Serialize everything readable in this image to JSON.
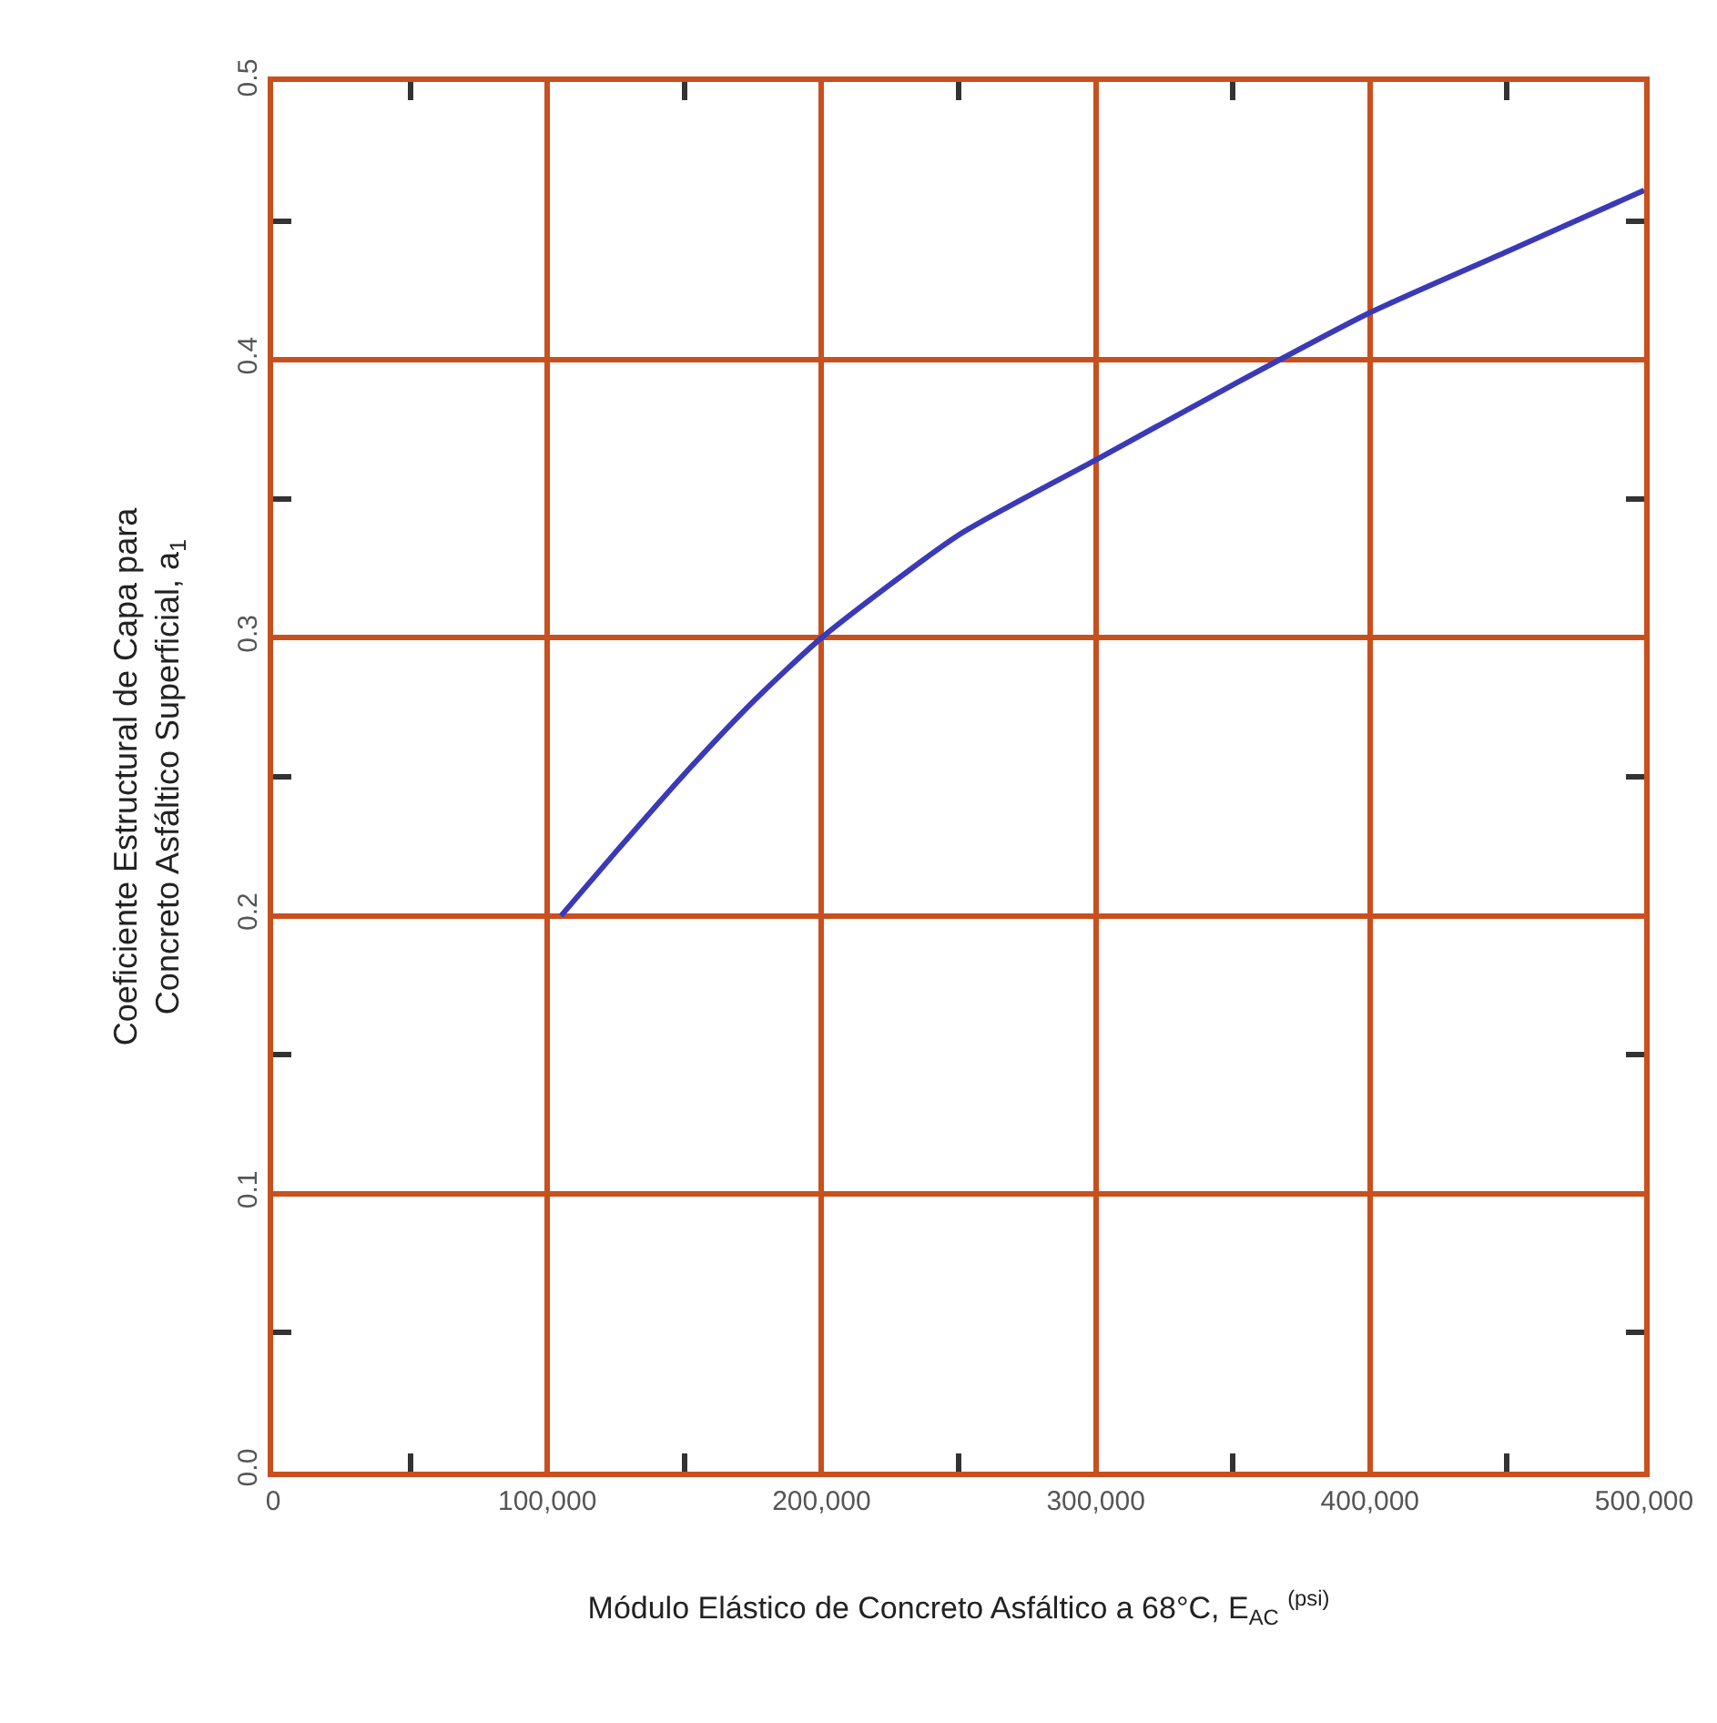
{
  "chart_data": {
    "type": "line",
    "xlabel": "Módulo Elástico de Concreto Asfáltico a 68°C, E$_{AC}$ $^{(psi)}$",
    "ylabel": "Coeficiente Estructural de Capa para\nConcreto Asfáltico Superficial, a$_{1}$",
    "x": [
      105000,
      125000,
      150000,
      175000,
      200000,
      250000,
      300000,
      350000,
      400000,
      450000,
      500000
    ],
    "series": [
      {
        "color": "#3a3ab8",
        "values": [
          0.2,
          0.223,
          0.251,
          0.277,
          0.3,
          0.337,
          0.364,
          0.391,
          0.417,
          0.439,
          0.461
        ]
      }
    ],
    "xlim": [
      0,
      500000
    ],
    "ylim": [
      0,
      0.5
    ],
    "xticks": [
      {
        "value": 0,
        "label": "0"
      },
      {
        "value": 50000,
        "label": null
      },
      {
        "value": 100000,
        "label": "100,000"
      },
      {
        "value": 150000,
        "label": null
      },
      {
        "value": 200000,
        "label": "200,000"
      },
      {
        "value": 250000,
        "label": null
      },
      {
        "value": 300000,
        "label": "300,000"
      },
      {
        "value": 350000,
        "label": null
      },
      {
        "value": 400000,
        "label": "400,000"
      },
      {
        "value": 450000,
        "label": null
      },
      {
        "value": 500000,
        "label": "500,000"
      }
    ],
    "yticks": [
      {
        "value": 0,
        "label": "0.0"
      },
      {
        "value": 0.05,
        "label": null
      },
      {
        "value": 0.1,
        "label": "0.1"
      },
      {
        "value": 0.15,
        "label": null
      },
      {
        "value": 0.2,
        "label": "0.2"
      },
      {
        "value": 0.25,
        "label": null
      },
      {
        "value": 0.3,
        "label": "0.3"
      },
      {
        "value": 0.35,
        "label": null
      },
      {
        "value": 0.4,
        "label": "0.4"
      },
      {
        "value": 0.45,
        "label": null
      },
      {
        "value": 0.5,
        "label": "0.5"
      }
    ],
    "grid": true,
    "line_style": "solid",
    "marker": "none"
  }
}
